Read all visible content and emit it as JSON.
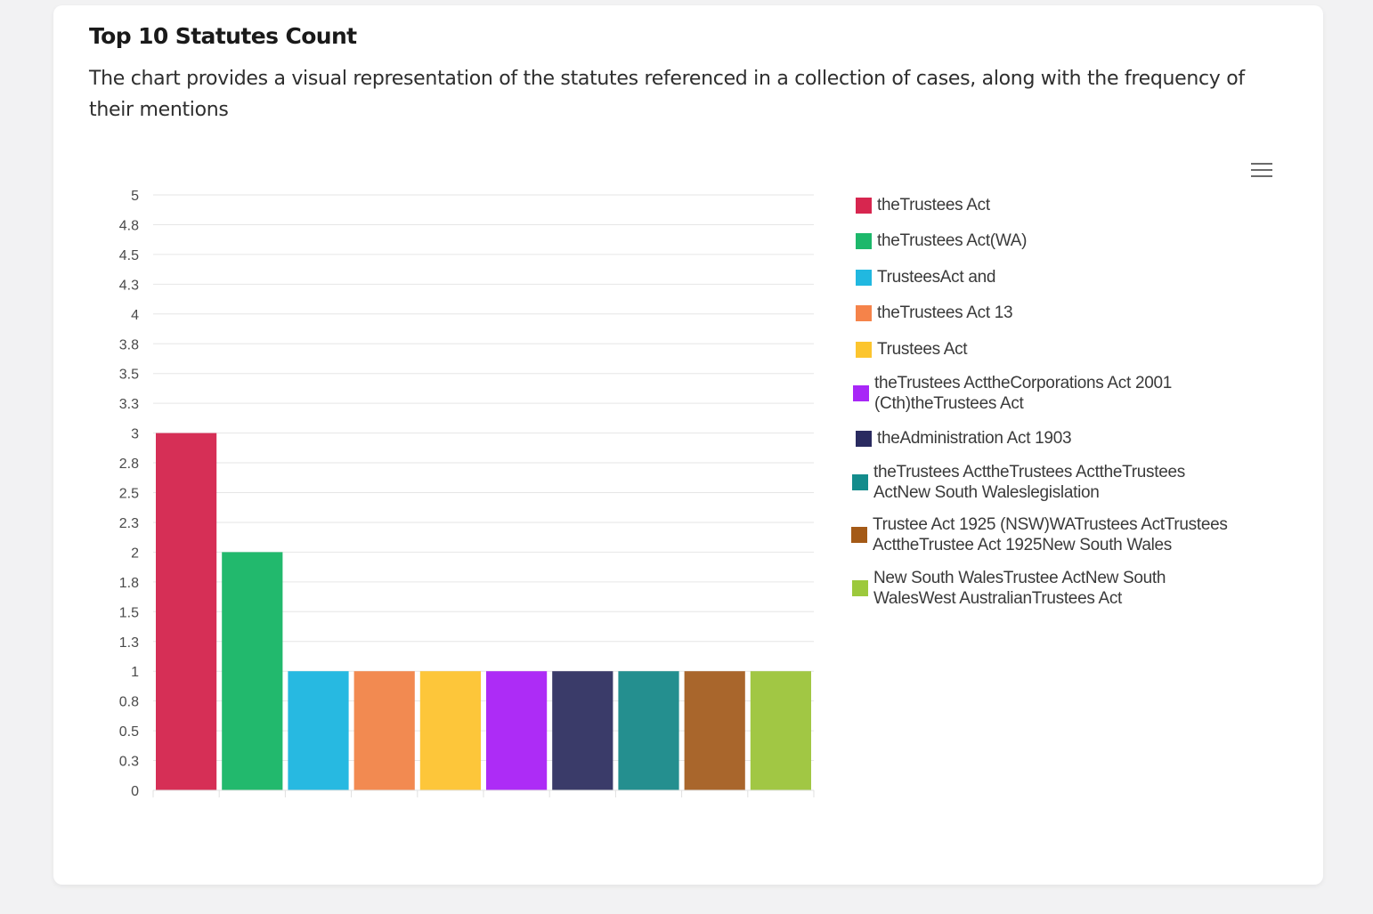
{
  "header": {
    "title": "Top 10 Statutes Count",
    "subtitle": "The chart provides a visual representation of the statutes referenced in a collection of cases, along with the frequency of their mentions"
  },
  "toolbar": {
    "menu_icon": "hamburger-menu-icon"
  },
  "chart_data": {
    "type": "bar",
    "categories": [
      "theTrustees Act",
      "theTrustees Act(WA)",
      "TrusteesAct and",
      "theTrustees Act 13",
      "Trustees Act",
      "theTrustees ActtheCorporations Act 2001 (Cth)theTrustees Act",
      "theAdministration Act 1903",
      "theTrustees ActtheTrustees ActtheTrustees ActNew South Waleslegislation",
      "Trustee Act 1925 (NSW)WATrustees ActTrustees ActtheTrustee Act 1925New South Wales",
      "New South WalesTrustee ActNew South WalesWest AustralianTrustees Act"
    ],
    "values": [
      3,
      2,
      1,
      1,
      1,
      1,
      1,
      1,
      1,
      1
    ],
    "colors": [
      "#d7264f",
      "#1db86b",
      "#21b8e0",
      "#f5834a",
      "#fcc52e",
      "#a827f7",
      "#2a2b60",
      "#138c8c",
      "#a45a17",
      "#9cc93c"
    ],
    "bar_colors": [
      "#d62f56",
      "#22b96d",
      "#27b9e1",
      "#f28a51",
      "#fdc63a",
      "#ad2cf6",
      "#3a3b69",
      "#248f8f",
      "#a9662c",
      "#a1c744"
    ],
    "yticks": [
      "0",
      "0.3",
      "0.5",
      "0.8",
      "1",
      "1.3",
      "1.5",
      "1.8",
      "2",
      "2.3",
      "2.5",
      "2.8",
      "3",
      "3.3",
      "3.5",
      "3.8",
      "4",
      "4.3",
      "4.5",
      "4.8",
      "5"
    ],
    "ylim": [
      0,
      5
    ],
    "grid": true,
    "legend": "right",
    "xlabel": "",
    "ylabel": ""
  }
}
